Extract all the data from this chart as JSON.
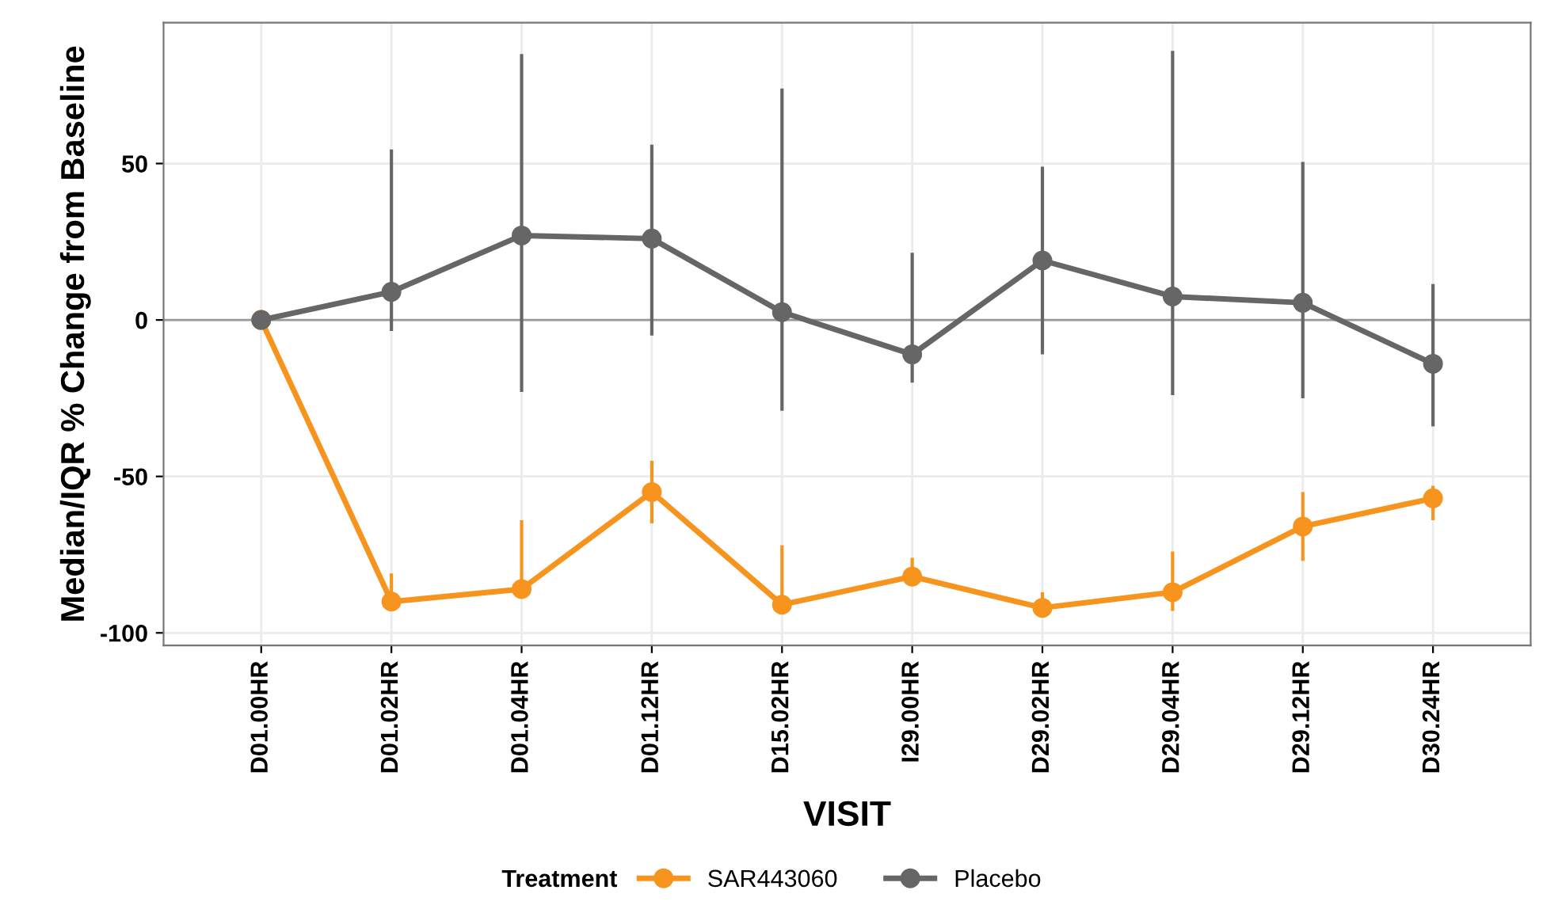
{
  "chart_data": {
    "type": "line",
    "xlabel": "VISIT",
    "ylabel": "Median/IQR % Change from Baseline",
    "legend_title": "Treatment",
    "categories": [
      "D01.00HR",
      "D01.02HR",
      "D01.04HR",
      "D01.12HR",
      "D15.02HR",
      "I29.00HR",
      "D29.02HR",
      "D29.04HR",
      "D29.12HR",
      "D30.24HR"
    ],
    "series": [
      {
        "name": "SAR443060",
        "color": "#f7941d",
        "values": [
          0,
          -90,
          -86,
          -55,
          -91,
          -82,
          -92,
          -87,
          -66,
          -57
        ],
        "errors": [
          null,
          [
            -93,
            -81
          ],
          [
            -86,
            -64
          ],
          [
            -65,
            -45
          ],
          [
            -94,
            -72
          ],
          [
            -84,
            -76
          ],
          [
            -94,
            -87
          ],
          [
            -93,
            -74
          ],
          [
            -77,
            -55
          ],
          [
            -64,
            -53
          ]
        ]
      },
      {
        "name": "Placebo",
        "color": "#666666",
        "values": [
          0,
          9,
          27,
          26,
          2.5,
          -11,
          19,
          7.5,
          5.5,
          -14
        ],
        "errors": [
          null,
          [
            -3.5,
            54.5
          ],
          [
            -23,
            85
          ],
          [
            -5,
            56
          ],
          [
            -29,
            74
          ],
          [
            -20,
            21.5
          ],
          [
            -11,
            49
          ],
          [
            -24,
            86
          ],
          [
            -25,
            50.5
          ],
          [
            -34,
            11.5
          ]
        ]
      }
    ],
    "ylim": [
      -104,
      95
    ],
    "yticks": [
      -100,
      -50,
      0,
      50
    ],
    "grid": true,
    "legend": "bottom",
    "marker": "circle",
    "line_style": "solid",
    "ref_lines": [
      {
        "axis": "y",
        "value": 0,
        "color": "#999999"
      }
    ]
  }
}
